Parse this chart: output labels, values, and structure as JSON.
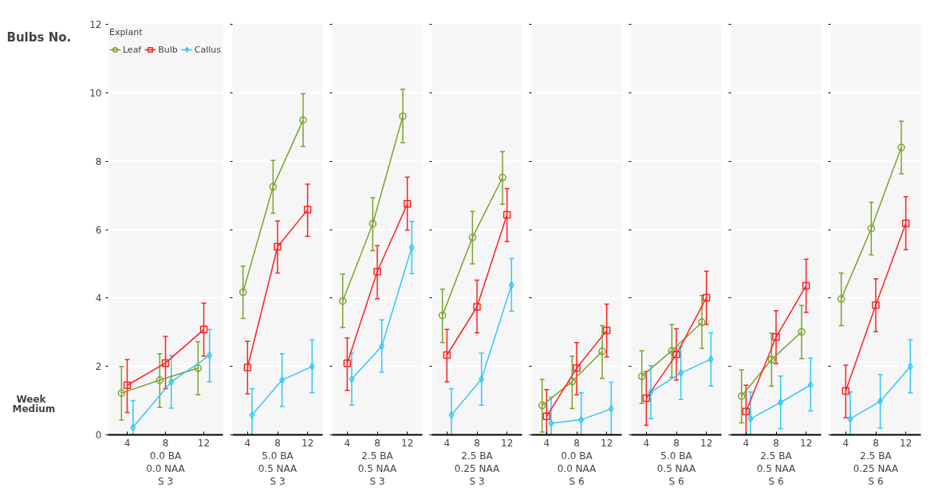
{
  "chart_data": [
    {
      "type": "line",
      "ylabel": "Bulbs No.",
      "xlabel": "Week",
      "subtitle": "Medium",
      "legend_title": "Explant",
      "legend": "top",
      "grid": "y",
      "categories": [
        "4",
        "8",
        "12"
      ],
      "ylim": [
        0,
        12
      ],
      "yticks": [
        0,
        2,
        4,
        6,
        8,
        10,
        12
      ],
      "annotations": [
        "0.0 BA",
        "0.0 NAA",
        "S 3"
      ],
      "series": [
        {
          "name": "Leaf",
          "color": "#7aa32c",
          "marker": "circle",
          "values": [
            1.22,
            1.6,
            1.95
          ],
          "errors": [
            [
              0.43,
              2.0
            ],
            [
              0.8,
              2.37
            ],
            [
              1.17,
              2.72
            ]
          ]
        },
        {
          "name": "Bulb",
          "color": "#ff2020",
          "marker": "square",
          "values": [
            1.45,
            2.1,
            3.08
          ],
          "errors": [
            [
              0.65,
              2.2
            ],
            [
              1.35,
              2.88
            ],
            [
              2.3,
              3.85
            ]
          ]
        },
        {
          "name": "Callus",
          "color": "#30c8f8",
          "marker": "diamond",
          "values": [
            0.22,
            1.55,
            2.32
          ],
          "errors": [
            [
              0,
              1.0
            ],
            [
              0.78,
              2.32
            ],
            [
              1.55,
              3.08
            ]
          ]
        }
      ]
    },
    {
      "type": "line",
      "grid": "y",
      "tick_labels": "x",
      "categories": [
        "4",
        "8",
        "12"
      ],
      "ylim": [
        0,
        12
      ],
      "yticks": [
        0,
        2,
        4,
        6,
        8,
        10,
        12
      ],
      "annotations": [
        "5.0 BA",
        "0.5 NAA",
        "S 3"
      ],
      "series": [
        {
          "color": "#7aa32c",
          "marker": "circle",
          "values": [
            4.17,
            7.25,
            9.2
          ],
          "errors": [
            [
              3.4,
              4.93
            ],
            [
              6.48,
              8.02
            ],
            [
              8.43,
              9.97
            ]
          ]
        },
        {
          "color": "#ff2020",
          "marker": "square",
          "values": [
            1.97,
            5.5,
            6.58
          ],
          "errors": [
            [
              1.2,
              2.73
            ],
            [
              4.73,
              6.25
            ],
            [
              5.8,
              7.33
            ]
          ]
        },
        {
          "color": "#30c8f8",
          "marker": "diamond",
          "values": [
            0.58,
            1.6,
            2.0
          ],
          "errors": [
            [
              0,
              1.35
            ],
            [
              0.83,
              2.37
            ],
            [
              1.23,
              2.78
            ]
          ]
        }
      ]
    },
    {
      "type": "line",
      "grid": "y",
      "tick_labels": "x",
      "categories": [
        "4",
        "8",
        "12"
      ],
      "ylim": [
        0,
        12
      ],
      "yticks": [
        0,
        2,
        4,
        6,
        8,
        10,
        12
      ],
      "annotations": [
        "2.5 BA",
        "0.5 NAA",
        "S 3"
      ],
      "series": [
        {
          "color": "#7aa32c",
          "marker": "circle",
          "values": [
            3.91,
            6.17,
            9.31
          ],
          "errors": [
            [
              3.14,
              4.7
            ],
            [
              5.38,
              6.93
            ],
            [
              8.54,
              10.1
            ]
          ]
        },
        {
          "color": "#ff2020",
          "marker": "square",
          "values": [
            2.09,
            4.77,
            6.75
          ],
          "errors": [
            [
              1.3,
              2.83
            ],
            [
              3.98,
              5.53
            ],
            [
              5.98,
              7.53
            ]
          ]
        },
        {
          "color": "#30c8f8",
          "marker": "diamond",
          "values": [
            1.63,
            2.59,
            5.48
          ],
          "errors": [
            [
              0.87,
              2.39
            ],
            [
              1.83,
              3.36
            ],
            [
              4.71,
              6.24
            ]
          ]
        }
      ]
    },
    {
      "type": "line",
      "grid": "y",
      "tick_labels": "x",
      "categories": [
        "4",
        "8",
        "12"
      ],
      "ylim": [
        0,
        12
      ],
      "yticks": [
        0,
        2,
        4,
        6,
        8,
        10,
        12
      ],
      "annotations": [
        "2.5 BA",
        "0.25 NAA",
        "S 3"
      ],
      "series": [
        {
          "color": "#7aa32c",
          "marker": "circle",
          "values": [
            3.49,
            5.77,
            7.52
          ],
          "errors": [
            [
              2.7,
              4.26
            ],
            [
              5.0,
              6.53
            ],
            [
              6.74,
              8.28
            ]
          ]
        },
        {
          "color": "#ff2020",
          "marker": "square",
          "values": [
            2.33,
            3.74,
            6.43
          ],
          "errors": [
            [
              1.55,
              3.08
            ],
            [
              2.98,
              4.52
            ],
            [
              5.65,
              7.2
            ]
          ]
        },
        {
          "color": "#30c8f8",
          "marker": "diamond",
          "values": [
            0.58,
            1.63,
            4.38
          ],
          "errors": [
            [
              0,
              1.35
            ],
            [
              0.87,
              2.39
            ],
            [
              3.62,
              5.15
            ]
          ]
        }
      ]
    },
    {
      "type": "line",
      "grid": "y",
      "tick_labels": "x",
      "categories": [
        "4",
        "8",
        "12"
      ],
      "ylim": [
        0,
        12
      ],
      "yticks": [
        0,
        2,
        4,
        6,
        8,
        10,
        12
      ],
      "annotations": [
        "0.0 BA",
        "0.0 NAA",
        "S 6"
      ],
      "series": [
        {
          "color": "#7aa32c",
          "marker": "circle",
          "values": [
            0.86,
            1.56,
            2.44
          ],
          "errors": [
            [
              0.08,
              1.62
            ],
            [
              0.77,
              2.3
            ],
            [
              1.65,
              3.19
            ]
          ]
        },
        {
          "color": "#ff2020",
          "marker": "square",
          "values": [
            0.54,
            1.95,
            3.05
          ],
          "errors": [
            [
              0,
              1.32
            ],
            [
              1.17,
              2.7
            ],
            [
              2.28,
              3.82
            ]
          ]
        },
        {
          "color": "#30c8f8",
          "marker": "diamond",
          "values": [
            0.34,
            0.44,
            0.76
          ],
          "errors": [
            [
              0,
              1.1
            ],
            [
              0,
              1.23
            ],
            [
              0,
              1.54
            ]
          ]
        }
      ]
    },
    {
      "type": "line",
      "grid": "y",
      "tick_labels": "x",
      "categories": [
        "4",
        "8",
        "12"
      ],
      "ylim": [
        0,
        12
      ],
      "yticks": [
        0,
        2,
        4,
        6,
        8,
        10,
        12
      ],
      "annotations": [
        "5.0 BA",
        "0.5 NAA",
        "S 6"
      ],
      "series": [
        {
          "color": "#7aa32c",
          "marker": "circle",
          "values": [
            1.71,
            2.46,
            3.29
          ],
          "errors": [
            [
              0.92,
              2.46
            ],
            [
              1.68,
              3.23
            ],
            [
              2.53,
              4.07
            ]
          ]
        },
        {
          "color": "#ff2020",
          "marker": "square",
          "values": [
            1.07,
            2.35,
            4.01
          ],
          "errors": [
            [
              0.28,
              1.85
            ],
            [
              1.6,
              3.1
            ],
            [
              3.23,
              4.78
            ]
          ]
        },
        {
          "color": "#30c8f8",
          "marker": "diamond",
          "values": [
            1.25,
            1.81,
            2.21
          ],
          "errors": [
            [
              0.47,
              2.02
            ],
            [
              1.03,
              2.58
            ],
            [
              1.43,
              2.98
            ]
          ]
        }
      ]
    },
    {
      "type": "line",
      "grid": "y",
      "tick_labels": "x",
      "categories": [
        "4",
        "8",
        "12"
      ],
      "ylim": [
        0,
        12
      ],
      "yticks": [
        0,
        2,
        4,
        6,
        8,
        10,
        12
      ],
      "annotations": [
        "2.5 BA",
        "0.5 NAA",
        "S 6"
      ],
      "series": [
        {
          "color": "#7aa32c",
          "marker": "circle",
          "values": [
            1.13,
            2.2,
            3.01
          ],
          "errors": [
            [
              0.35,
              1.9
            ],
            [
              1.42,
              2.97
            ],
            [
              2.23,
              3.78
            ]
          ]
        },
        {
          "color": "#ff2020",
          "marker": "square",
          "values": [
            0.68,
            2.86,
            4.36
          ],
          "errors": [
            [
              0,
              1.45
            ],
            [
              2.08,
              3.63
            ],
            [
              3.58,
              5.13
            ]
          ]
        },
        {
          "color": "#30c8f8",
          "marker": "diamond",
          "values": [
            0.47,
            0.95,
            1.46
          ],
          "errors": [
            [
              0,
              1.25
            ],
            [
              0.18,
              1.72
            ],
            [
              0.7,
              2.24
            ]
          ]
        }
      ]
    },
    {
      "type": "line",
      "grid": "y",
      "tick_labels": "x",
      "categories": [
        "4",
        "8",
        "12"
      ],
      "ylim": [
        0,
        12
      ],
      "yticks": [
        0,
        2,
        4,
        6,
        8,
        10,
        12
      ],
      "annotations": [
        "2.5 BA",
        "0.25 NAA",
        "S 6"
      ],
      "series": [
        {
          "color": "#7aa32c",
          "marker": "circle",
          "values": [
            3.97,
            6.03,
            8.4
          ],
          "errors": [
            [
              3.19,
              4.73
            ],
            [
              5.26,
              6.8
            ],
            [
              7.63,
              9.17
            ]
          ]
        },
        {
          "color": "#ff2020",
          "marker": "square",
          "values": [
            1.28,
            3.79,
            6.18
          ],
          "errors": [
            [
              0.5,
              2.04
            ],
            [
              3.02,
              4.56
            ],
            [
              5.41,
              6.96
            ]
          ]
        },
        {
          "color": "#30c8f8",
          "marker": "diamond",
          "values": [
            0.47,
            0.98,
            2.0
          ],
          "errors": [
            [
              0,
              1.25
            ],
            [
              0.2,
              1.76
            ],
            [
              1.23,
              2.78
            ]
          ]
        }
      ]
    }
  ]
}
